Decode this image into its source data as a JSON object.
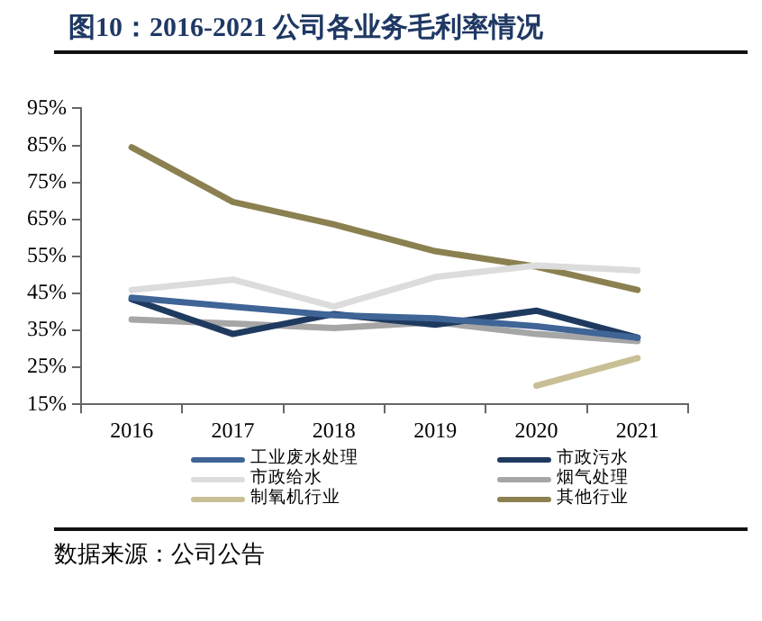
{
  "chart_data": {
    "type": "line",
    "title": "图10：2016-2021 公司各业务毛利率情况",
    "categories": [
      "2016",
      "2017",
      "2018",
      "2019",
      "2020",
      "2021"
    ],
    "series": [
      {
        "name": "工业废水处理",
        "color": "#3f6496",
        "values": [
          43.8,
          41.4,
          39.1,
          38.2,
          36.1,
          33.0
        ]
      },
      {
        "name": "市政污水",
        "color": "#1f3a5f",
        "values": [
          43.4,
          34.0,
          39.4,
          36.5,
          40.3,
          33.0
        ]
      },
      {
        "name": "市政给水",
        "color": "#dcdcdc",
        "values": [
          45.9,
          48.7,
          41.4,
          49.4,
          52.5,
          51.2
        ]
      },
      {
        "name": "烟气处理",
        "color": "#a6a6a6",
        "values": [
          37.9,
          36.8,
          35.6,
          37.2,
          34.0,
          32.1
        ]
      },
      {
        "name": "制氧机行业",
        "color": "#c9bf95",
        "values": [
          null,
          null,
          null,
          null,
          20.0,
          27.5
        ]
      },
      {
        "name": "其他行业",
        "color": "#8b8050",
        "values": [
          84.5,
          69.7,
          63.6,
          56.4,
          52.2,
          45.9
        ]
      }
    ],
    "ylim": [
      15,
      95
    ],
    "yticks": [
      {
        "value": 15,
        "label": "15%"
      },
      {
        "value": 25,
        "label": "25%"
      },
      {
        "value": 35,
        "label": "35%"
      },
      {
        "value": 45,
        "label": "45%"
      },
      {
        "value": 55,
        "label": "55%"
      },
      {
        "value": 65,
        "label": "65%"
      },
      {
        "value": 75,
        "label": "75%"
      },
      {
        "value": 85,
        "label": "85%"
      },
      {
        "value": 95,
        "label": "95%"
      }
    ],
    "grid": false,
    "legend": "bottom",
    "marker": "none",
    "line_style": "solid",
    "annotations": [
      "数据来源：公司公告"
    ]
  }
}
